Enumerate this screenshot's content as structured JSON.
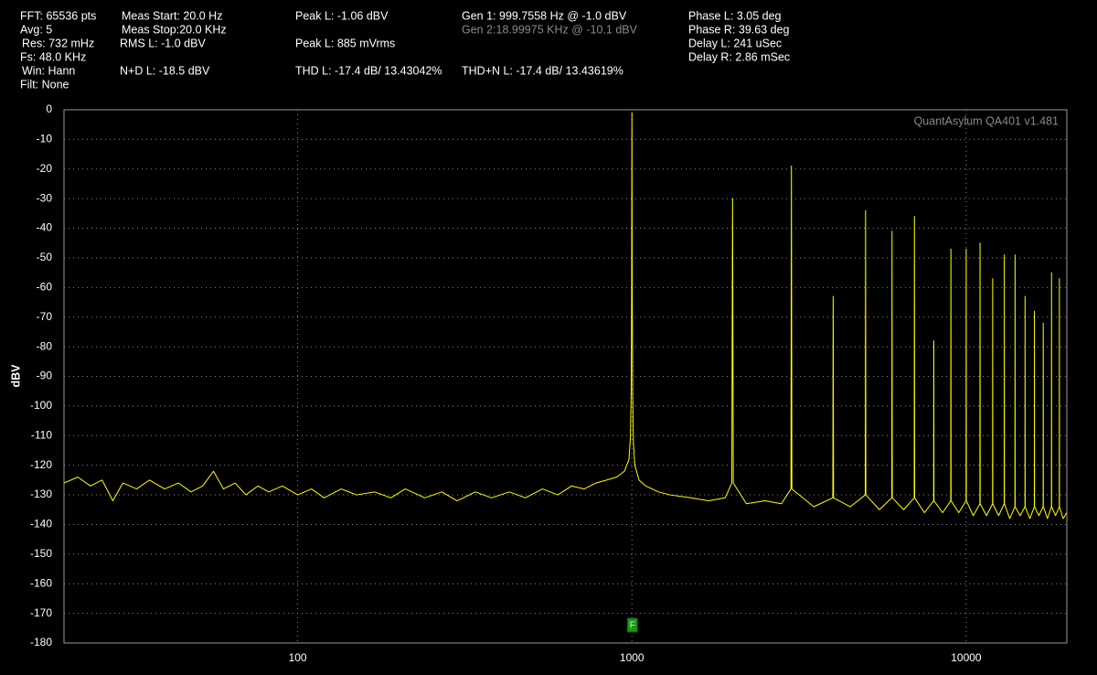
{
  "chart_data": {
    "type": "line",
    "readouts": [
      "FFT: 65536 pts",
      "Avg: 5",
      "Res: 732 mHz",
      "Fs: 48.0 KHz",
      "Win: Hann",
      "Filt: None",
      "Meas Start: 20.0 Hz",
      "Meas Stop:20.0 KHz",
      "RMS L: -1.0 dBV",
      "N+D L: -18.5 dBV",
      "Peak L: -1.06 dBV",
      "Peak L: 885 mVrms",
      "THD L: -17.4 dB/ 13.43042%",
      "Gen 1: 999.7558 Hz @ -1.0  dBV",
      "Gen 2:18.99975 KHz @ -10.1  dBV",
      "THD+N L: -17.4 dB/ 13.43619%",
      "Phase L: 3.05 deg",
      "Phase R: 39.63 deg",
      "Delay L: 241 uSec",
      "Delay R: 2.86 mSec"
    ],
    "watermark": "QuantAsylum QA401 v1.481",
    "ylabel": "dBV",
    "xscale": "log",
    "xlim": [
      20,
      20000
    ],
    "xticks": [
      100,
      1000,
      10000
    ],
    "ylim": [
      -180,
      0
    ],
    "yticks": [
      0,
      -10,
      -20,
      -30,
      -40,
      -50,
      -60,
      -70,
      -80,
      -90,
      -100,
      -110,
      -120,
      -130,
      -140,
      -150,
      -160,
      -170,
      -180
    ],
    "grid": true,
    "marker": {
      "label": "F",
      "x": 1000
    },
    "x": [
      20,
      22,
      24,
      26,
      28,
      30,
      33,
      36,
      40,
      44,
      48,
      52,
      56,
      60,
      65,
      70,
      76,
      82,
      90,
      100,
      110,
      120,
      135,
      150,
      170,
      190,
      210,
      240,
      270,
      300,
      340,
      380,
      430,
      480,
      540,
      600,
      660,
      720,
      780,
      840,
      900,
      950,
      980,
      990,
      995,
      998,
      1000,
      1002,
      1005,
      1010,
      1020,
      1050,
      1100,
      1200,
      1300,
      1500,
      1700,
      1900,
      1990,
      2000,
      2010,
      2200,
      2500,
      2800,
      2990,
      3000,
      3010,
      3500,
      3990,
      4000,
      4010,
      4500,
      4990,
      5000,
      5010,
      5500,
      5990,
      6000,
      6010,
      6500,
      6990,
      7000,
      7010,
      7500,
      7990,
      8000,
      8010,
      8500,
      8990,
      9000,
      9010,
      9500,
      9990,
      10000,
      10010,
      10500,
      10990,
      11000,
      11010,
      11500,
      11990,
      12000,
      12010,
      12500,
      12990,
      13000,
      13010,
      13500,
      13990,
      14000,
      14010,
      14500,
      14990,
      15000,
      15010,
      15500,
      15990,
      16000,
      16010,
      16500,
      16990,
      17000,
      17010,
      17500,
      17990,
      18000,
      18010,
      18500,
      18990,
      19000,
      19010,
      19500,
      20000
    ],
    "series": [
      {
        "name": "L",
        "color": "#ffff00",
        "values": [
          -126,
          -124,
          -127,
          -125,
          -132,
          -126,
          -128,
          -125,
          -128,
          -126,
          -129,
          -127,
          -122,
          -128,
          -126,
          -130,
          -127,
          -129,
          -127,
          -130,
          -128,
          -131,
          -128,
          -130,
          -129,
          -131,
          -128,
          -131,
          -129,
          -132,
          -129,
          -131,
          -129,
          -131,
          -128,
          -130,
          -127,
          -128,
          -126,
          -125,
          -124,
          -122,
          -118,
          -110,
          -95,
          -60,
          -1,
          -60,
          -95,
          -112,
          -120,
          -125,
          -127,
          -129,
          -130,
          -131,
          -132,
          -131,
          -126,
          -30,
          -126,
          -133,
          -132,
          -133,
          -128,
          -19,
          -128,
          -134,
          -131,
          -63,
          -131,
          -134,
          -130,
          -34,
          -130,
          -135,
          -131,
          -41,
          -131,
          -135,
          -131,
          -36,
          -131,
          -136,
          -132,
          -78,
          -132,
          -136,
          -132,
          -47,
          -132,
          -136,
          -132,
          -47,
          -132,
          -137,
          -133,
          -45,
          -133,
          -137,
          -133,
          -57,
          -133,
          -137,
          -133,
          -49,
          -133,
          -138,
          -134,
          -49,
          -134,
          -137,
          -134,
          -63,
          -134,
          -138,
          -134,
          -68,
          -134,
          -137,
          -134,
          -72,
          -134,
          -138,
          -134,
          -55,
          -134,
          -137,
          -134,
          -57,
          -134,
          -138,
          -136
        ]
      }
    ]
  }
}
